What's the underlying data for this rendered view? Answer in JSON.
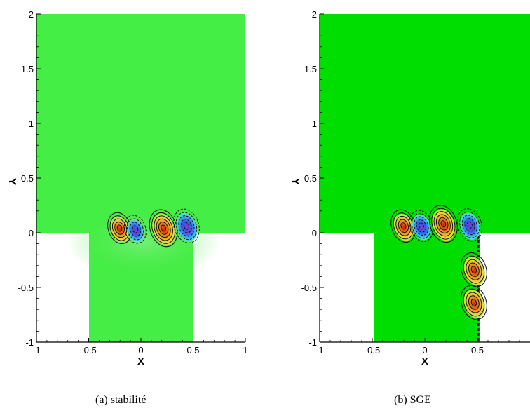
{
  "chart_data": [
    {
      "type": "heatmap",
      "caption": "(a) stabilité",
      "xlabel": "X",
      "ylabel": "Y",
      "xlim": [
        -1,
        1
      ],
      "ylim": [
        -1,
        2
      ],
      "x_ticks": [
        -1,
        -0.5,
        0,
        0.5,
        1
      ],
      "y_ticks": [
        -1,
        -0.5,
        0,
        0.5,
        1,
        1.5,
        2
      ],
      "x_tick_labels": [
        "-1",
        "-0.5",
        "0",
        "0.5",
        "1"
      ],
      "y_tick_labels": [
        "-1",
        "-0.5",
        "0",
        "0.5",
        "1",
        "1.5",
        "2"
      ],
      "domain": {
        "cavity_x": [
          -0.5,
          0.5
        ],
        "cavity_y": [
          -1,
          0
        ],
        "upper_x": [
          -1,
          1
        ],
        "upper_y": [
          0,
          2
        ]
      },
      "structures": [
        {
          "x": -0.2,
          "y": 0.03,
          "sign": "positive",
          "strength": 0.6
        },
        {
          "x": -0.05,
          "y": 0.02,
          "sign": "negative",
          "strength": 0.4
        },
        {
          "x": 0.22,
          "y": 0.03,
          "sign": "positive",
          "strength": 1.0
        },
        {
          "x": 0.44,
          "y": 0.05,
          "sign": "negative",
          "strength": 0.8
        }
      ]
    },
    {
      "type": "heatmap",
      "caption": "(b) SGE",
      "xlabel": "X",
      "ylabel": "Y",
      "xlim": [
        -1,
        1
      ],
      "ylim": [
        -1,
        2
      ],
      "x_ticks": [
        -1,
        -0.5,
        0,
        0.5
      ],
      "y_ticks": [
        -1,
        -0.5,
        0,
        0.5,
        1,
        1.5,
        2
      ],
      "x_tick_labels": [
        "-1",
        "-0.5",
        "0",
        "0.5"
      ],
      "y_tick_labels": [
        "-1",
        "-0.5",
        "0",
        "0.5",
        "1",
        "1.5",
        "2"
      ],
      "domain": {
        "cavity_x": [
          -0.5,
          0.5
        ],
        "cavity_y": [
          -1,
          0
        ],
        "upper_x": [
          -1,
          1
        ],
        "upper_y": [
          0,
          2
        ]
      },
      "structures": [
        {
          "x": -0.2,
          "y": 0.05,
          "sign": "positive",
          "strength": 0.7
        },
        {
          "x": -0.03,
          "y": 0.05,
          "sign": "negative",
          "strength": 0.6
        },
        {
          "x": 0.18,
          "y": 0.07,
          "sign": "positive",
          "strength": 1.0
        },
        {
          "x": 0.43,
          "y": 0.06,
          "sign": "negative",
          "strength": 0.7
        },
        {
          "x": 0.47,
          "y": -0.35,
          "sign": "positive",
          "strength": 0.8
        },
        {
          "x": 0.47,
          "y": -0.65,
          "sign": "positive",
          "strength": 0.8
        }
      ]
    }
  ]
}
